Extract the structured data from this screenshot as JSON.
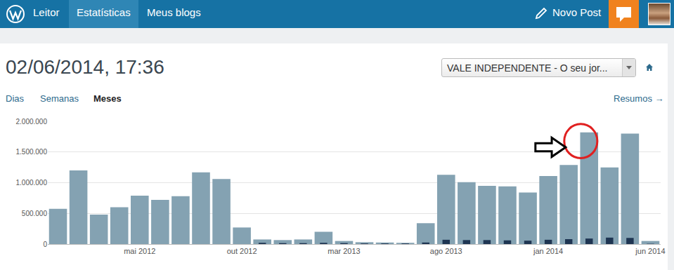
{
  "header": {
    "nav": [
      {
        "label": "Leitor"
      },
      {
        "label": "Estatísticas",
        "active": true
      },
      {
        "label": "Meus blogs"
      }
    ],
    "new_post": "Novo Post"
  },
  "page": {
    "datetime": "02/06/2014, 17:36",
    "blog_select": "VALE INDEPENDENTE - O seu jor...",
    "tabs": [
      {
        "label": "Dias"
      },
      {
        "label": "Semanas"
      },
      {
        "label": "Meses",
        "active": true
      }
    ],
    "summary_link": "Resumos →"
  },
  "chart_data": {
    "type": "bar",
    "categories": [
      null,
      null,
      null,
      null,
      "mai 2012",
      null,
      null,
      null,
      null,
      "out 2012",
      null,
      null,
      null,
      null,
      "mar 2013",
      null,
      null,
      null,
      null,
      "ago 2013",
      null,
      null,
      null,
      null,
      "jan 2014",
      null,
      null,
      null,
      null,
      "jun 2014"
    ],
    "series": [
      {
        "color": "#84a2b2",
        "values": [
          575000,
          1200000,
          480000,
          600000,
          790000,
          720000,
          780000,
          1170000,
          1060000,
          270000,
          75000,
          65000,
          75000,
          200000,
          50000,
          30000,
          25000,
          20000,
          340000,
          1130000,
          1010000,
          950000,
          940000,
          840000,
          1110000,
          1290000,
          1820000,
          1250000,
          1800000,
          50000
        ]
      },
      {
        "color": "#1e3552",
        "values": [
          0,
          0,
          0,
          0,
          0,
          0,
          0,
          0,
          0,
          0,
          20000,
          15000,
          15000,
          20000,
          15000,
          10000,
          10000,
          10000,
          25000,
          70000,
          65000,
          65000,
          60000,
          55000,
          70000,
          80000,
          90000,
          105000,
          100000,
          5000
        ]
      }
    ],
    "ylim": [
      0,
      2000000
    ],
    "yticks": [
      0,
      {
        "value": 500000,
        "label": "500.000"
      },
      {
        "value": 1000000,
        "label": "1.000.000"
      },
      {
        "value": 1500000,
        "label": "1.500.000"
      },
      {
        "value": 2000000,
        "label": "2.000.000"
      }
    ],
    "grid": true,
    "stacked": false
  }
}
